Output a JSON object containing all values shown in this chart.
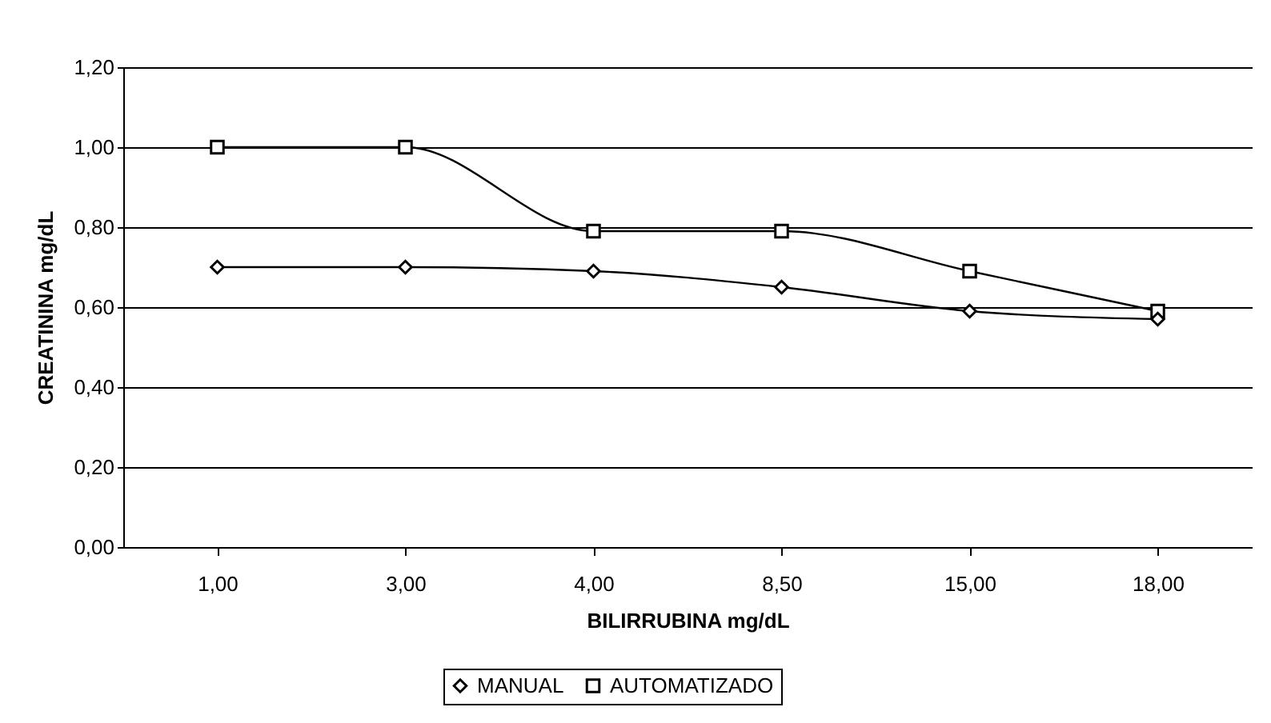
{
  "chart_data": {
    "type": "line",
    "xlabel": "BILIRRUBINA mg/dL",
    "ylabel": "CREATININA mg/dL",
    "categories": [
      "1,00",
      "3,00",
      "4,00",
      "8,50",
      "15,00",
      "18,00"
    ],
    "series": [
      {
        "name": "MANUAL",
        "color": "#000000",
        "marker": "diamond",
        "values": [
          0.7,
          0.7,
          0.69,
          0.65,
          0.59,
          0.57
        ]
      },
      {
        "name": "AUTOMATIZADO",
        "color": "#000000",
        "marker": "square",
        "values": [
          1.0,
          1.0,
          0.79,
          0.79,
          0.69,
          0.59
        ]
      }
    ],
    "ylim": [
      0,
      1.2
    ],
    "yticks": [
      {
        "value": 0,
        "label": "0,00"
      },
      {
        "value": 0.2,
        "label": "0,20"
      },
      {
        "value": 0.4,
        "label": "0,40"
      },
      {
        "value": 0.6,
        "label": "0,60"
      },
      {
        "value": 0.8,
        "label": "0,80"
      },
      {
        "value": 1.0,
        "label": "1,00"
      },
      {
        "value": 1.2,
        "label": "1,20"
      }
    ],
    "grid": "y",
    "legend": "bottom",
    "line_style": "solid"
  }
}
